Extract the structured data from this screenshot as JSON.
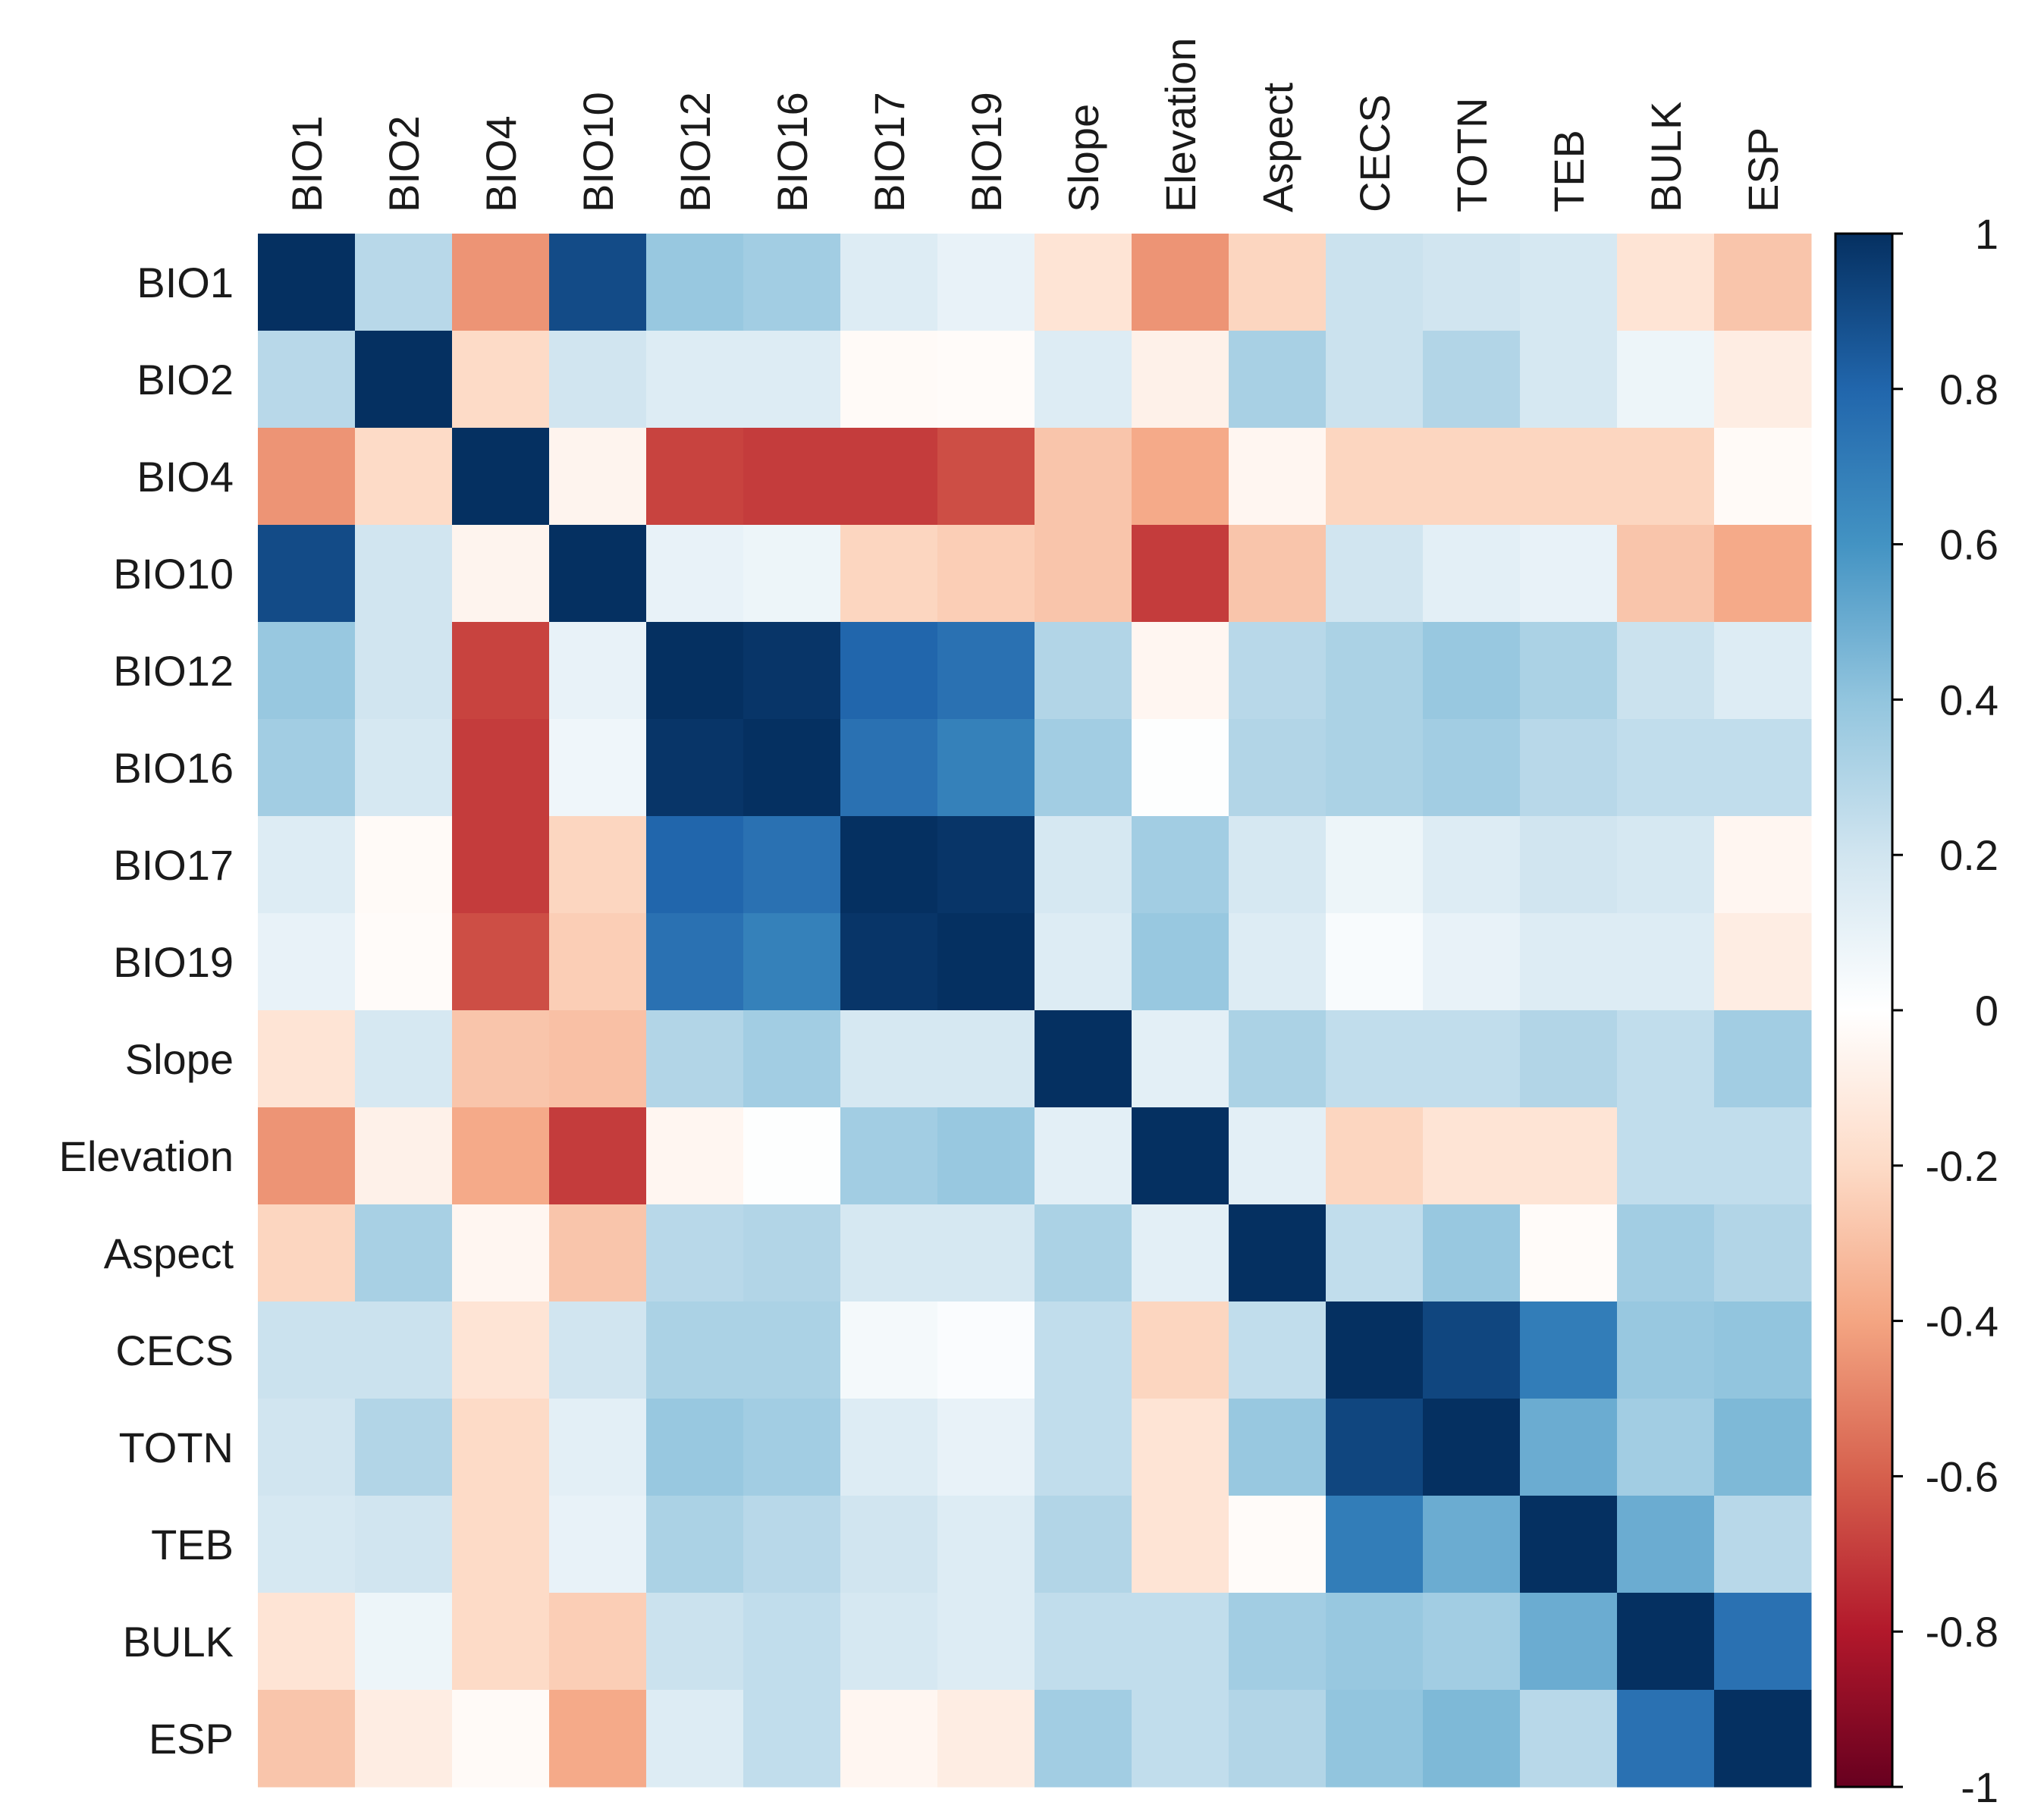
{
  "chart_data": {
    "type": "heatmap",
    "title": "",
    "xlabel": "",
    "ylabel": "",
    "labels": [
      "BIO1",
      "BIO2",
      "BIO4",
      "BIO10",
      "BIO12",
      "BIO16",
      "BIO17",
      "BIO19",
      "Slope",
      "Elevation",
      "Aspect",
      "CECS",
      "TOTN",
      "TEB",
      "BULK",
      "ESP"
    ],
    "matrix": [
      [
        1.0,
        0.28,
        -0.45,
        0.9,
        0.38,
        0.35,
        0.15,
        0.1,
        -0.15,
        -0.45,
        -0.22,
        0.22,
        0.2,
        0.18,
        -0.15,
        -0.28
      ],
      [
        0.28,
        1.0,
        -0.2,
        0.2,
        0.15,
        0.15,
        -0.03,
        -0.02,
        0.15,
        -0.08,
        0.33,
        0.22,
        0.3,
        0.18,
        0.08,
        -0.1
      ],
      [
        -0.45,
        -0.2,
        1.0,
        -0.06,
        -0.68,
        -0.7,
        -0.7,
        -0.65,
        -0.28,
        -0.38,
        -0.05,
        -0.22,
        -0.22,
        -0.22,
        -0.22,
        -0.03
      ],
      [
        0.9,
        0.2,
        -0.06,
        1.0,
        0.1,
        0.08,
        -0.22,
        -0.25,
        -0.28,
        -0.7,
        -0.28,
        0.2,
        0.12,
        0.1,
        -0.28,
        -0.38
      ],
      [
        0.38,
        0.2,
        -0.68,
        0.1,
        1.0,
        0.98,
        0.8,
        0.75,
        0.3,
        -0.05,
        0.28,
        0.32,
        0.38,
        0.32,
        0.22,
        0.15
      ],
      [
        0.35,
        0.18,
        -0.7,
        0.07,
        0.98,
        1.0,
        0.75,
        0.68,
        0.35,
        0.01,
        0.3,
        0.32,
        0.35,
        0.28,
        0.25,
        0.25
      ],
      [
        0.15,
        -0.03,
        -0.7,
        -0.22,
        0.8,
        0.75,
        1.0,
        0.98,
        0.18,
        0.35,
        0.18,
        0.08,
        0.15,
        0.2,
        0.18,
        -0.05
      ],
      [
        0.1,
        -0.02,
        -0.65,
        -0.25,
        0.75,
        0.68,
        0.98,
        1.0,
        0.15,
        0.38,
        0.15,
        0.03,
        0.1,
        0.15,
        0.15,
        -0.1
      ],
      [
        -0.15,
        0.18,
        -0.28,
        -0.3,
        0.3,
        0.35,
        0.18,
        0.18,
        1.0,
        0.12,
        0.32,
        0.25,
        0.25,
        0.3,
        0.25,
        0.35
      ],
      [
        -0.45,
        -0.08,
        -0.38,
        -0.7,
        -0.05,
        0.01,
        0.35,
        0.38,
        0.12,
        1.0,
        0.12,
        -0.22,
        -0.15,
        -0.15,
        0.25,
        0.25
      ],
      [
        -0.22,
        0.33,
        -0.05,
        -0.28,
        0.28,
        0.3,
        0.18,
        0.18,
        0.32,
        0.12,
        1.0,
        0.25,
        0.38,
        -0.02,
        0.35,
        0.3
      ],
      [
        0.22,
        0.22,
        -0.15,
        0.2,
        0.32,
        0.32,
        0.05,
        0.02,
        0.25,
        -0.22,
        0.25,
        1.0,
        0.92,
        0.7,
        0.38,
        0.4
      ],
      [
        0.2,
        0.3,
        -0.2,
        0.12,
        0.38,
        0.35,
        0.15,
        0.1,
        0.25,
        -0.15,
        0.38,
        0.92,
        1.0,
        0.5,
        0.35,
        0.45
      ],
      [
        0.18,
        0.2,
        -0.2,
        0.1,
        0.32,
        0.28,
        0.2,
        0.15,
        0.3,
        -0.15,
        -0.02,
        0.7,
        0.5,
        1.0,
        0.5,
        0.28
      ],
      [
        -0.15,
        0.08,
        -0.2,
        -0.25,
        0.22,
        0.25,
        0.18,
        0.15,
        0.25,
        0.25,
        0.35,
        0.38,
        0.35,
        0.5,
        1.0,
        0.75
      ],
      [
        -0.28,
        -0.1,
        -0.03,
        -0.38,
        0.15,
        0.25,
        -0.05,
        -0.1,
        0.35,
        0.25,
        0.3,
        0.4,
        0.45,
        0.28,
        0.75,
        1.0
      ]
    ],
    "colorbar": {
      "min": -1,
      "max": 1,
      "ticks": [
        "1",
        "0.8",
        "0.6",
        "0.4",
        "0.2",
        "0",
        "-0.2",
        "-0.4",
        "-0.6",
        "-0.8",
        "-1"
      ],
      "tick_values": [
        1,
        0.8,
        0.6,
        0.4,
        0.2,
        0,
        -0.2,
        -0.4,
        -0.6,
        -0.8,
        -1
      ],
      "palette": [
        "#67001f",
        "#b2182b",
        "#d6604d",
        "#f4a582",
        "#fddbc7",
        "#ffffff",
        "#d1e5f0",
        "#92c5de",
        "#4393c3",
        "#2166ac",
        "#053061"
      ]
    },
    "legend": "right",
    "grid": false
  }
}
